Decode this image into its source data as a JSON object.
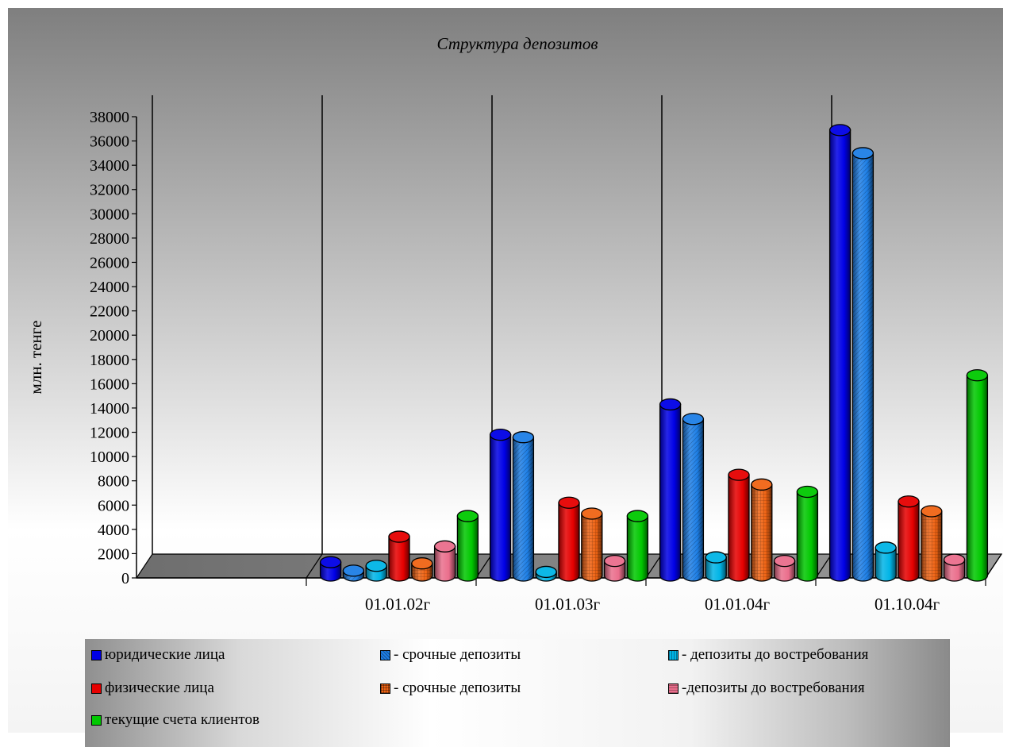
{
  "chart_data": {
    "type": "bar",
    "title": "Структура депозитов",
    "ylabel": "млн. тенге",
    "xlabel": "",
    "ylim": [
      0,
      38000
    ],
    "y_ticks": [
      "0",
      "2000",
      "4000",
      "6000",
      "8000",
      "10000",
      "12000",
      "14000",
      "16000",
      "18000",
      "20000",
      "22000",
      "24000",
      "26000",
      "28000",
      "30000",
      "32000",
      "34000",
      "36000",
      "38000"
    ],
    "categories": [
      "",
      "01.01.02г",
      "01.01.03г",
      "01.01.04г",
      "01.10.04г"
    ],
    "legend_position": "bottom",
    "grid": "vertical category separators",
    "series": [
      {
        "name": "юридические лица",
        "color": "#0000e6",
        "values": [
          null,
          1100,
          11600,
          14100,
          36700
        ]
      },
      {
        "name": "- срочные депозиты",
        "color": "#1e7fe6",
        "values": [
          null,
          400,
          11400,
          12900,
          34800
        ]
      },
      {
        "name": "- депозиты до востребования",
        "color": "#00b4e6",
        "values": [
          null,
          800,
          300,
          1500,
          2300
        ]
      },
      {
        "name": "физические лица",
        "color": "#e60000",
        "values": [
          null,
          3200,
          6000,
          8300,
          6100
        ]
      },
      {
        "name": "- срочные депозиты",
        "color": "#f06414",
        "values": [
          null,
          1000,
          5100,
          7500,
          5300
        ]
      },
      {
        "name": "-депозиты до востребования",
        "color": "#ea6e8c",
        "values": [
          null,
          2400,
          1200,
          1200,
          1300
        ]
      },
      {
        "name": "текущие счета клиентов",
        "color": "#00c800",
        "values": [
          null,
          4900,
          4900,
          6900,
          16500
        ]
      }
    ]
  }
}
